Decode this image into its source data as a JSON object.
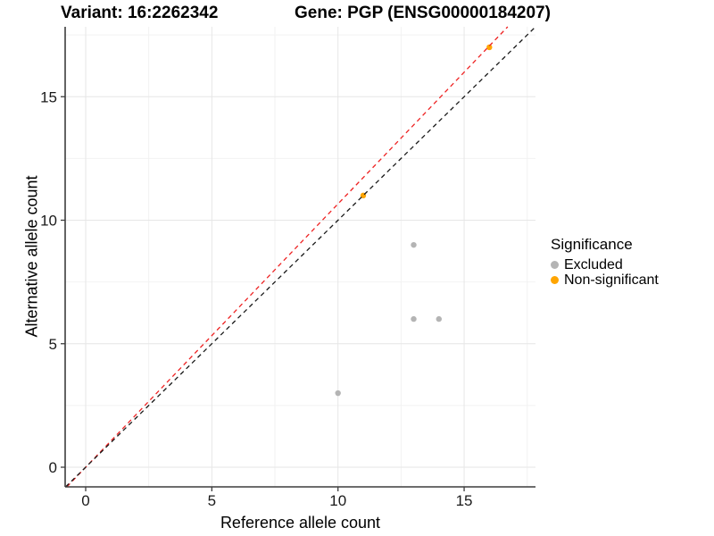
{
  "titles": {
    "variant": "Variant: 16:2262342",
    "gene": "Gene: PGP (ENSG00000184207)"
  },
  "axes": {
    "x_label": "Reference allele count",
    "y_label": "Alternative allele count"
  },
  "legend": {
    "title": "Significance",
    "items": [
      {
        "label": "Excluded",
        "color": "#b4b4b4"
      },
      {
        "label": "Non-significant",
        "color": "#FFA500"
      }
    ]
  },
  "chart_data": {
    "type": "scatter",
    "title": "Variant: 16:2262342 | Gene: PGP (ENSG00000184207)",
    "xlabel": "Reference allele count",
    "ylabel": "Alternative allele count",
    "xlim": [
      -0.81,
      17.83
    ],
    "ylim": [
      -0.8,
      17.83
    ],
    "x_ticks": [
      0,
      5,
      10,
      15
    ],
    "y_ticks": [
      0,
      5,
      10,
      15
    ],
    "x_minor": [
      2.5,
      7.5,
      12.5,
      17.5
    ],
    "y_minor": [
      2.5,
      7.5,
      12.5,
      17.5
    ],
    "grid": true,
    "legend_position": "right",
    "series": [
      {
        "name": "Excluded",
        "color": "#b4b4b4",
        "points": [
          [
            13,
            9
          ],
          [
            13,
            6
          ],
          [
            14,
            6
          ],
          [
            10,
            3
          ]
        ]
      },
      {
        "name": "Non-significant",
        "color": "#FFA500",
        "points": [
          [
            16,
            17
          ],
          [
            11,
            11
          ]
        ]
      }
    ],
    "lines": [
      {
        "name": "fitted-line",
        "slope": 1.066,
        "intercept": 0,
        "color": "#ee2222",
        "style": "dashed"
      },
      {
        "name": "identity-line",
        "slope": 1,
        "intercept": 0,
        "color": "#1a1a1a",
        "style": "dashed"
      }
    ],
    "colors": {
      "grid_major": "#e6e6e6",
      "grid_minor": "#f2f2f2",
      "axis": "#3d3d3d"
    }
  }
}
